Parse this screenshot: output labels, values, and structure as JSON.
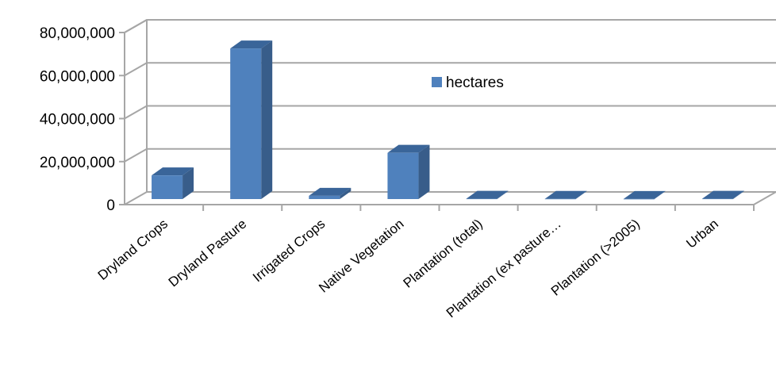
{
  "chart_data": {
    "type": "bar",
    "categories": [
      "Dryland Crops",
      "Dryland Pasture",
      "Irrigated Crops",
      "Native Vegetation",
      "Plantation (total)",
      "Plantation (ex pasture…",
      "Plantation (>2005)",
      "Urban"
    ],
    "series": [
      {
        "name": "hectares",
        "values": [
          11000000,
          70000000,
          1500000,
          21500000,
          150000,
          100000,
          50000,
          150000
        ]
      }
    ],
    "yticks": [
      "0",
      "20,000,000",
      "40,000,000",
      "60,000,000",
      "80,000,000"
    ],
    "ylim": [
      0,
      80000000
    ],
    "grid": true,
    "legend_position": "center",
    "three_d": true,
    "colors": {
      "bar_front": "#4f81bd",
      "bar_side": "#385d8a",
      "bar_top": "#3a6599",
      "grid": "#a6a6a6"
    }
  }
}
